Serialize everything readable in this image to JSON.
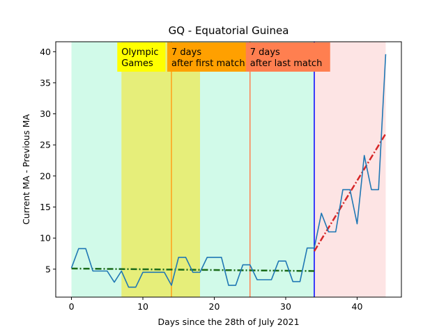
{
  "chart_data": {
    "type": "line",
    "title": "GQ - Equatorial Guinea",
    "xlabel": "Days since the 28th of July 2021",
    "ylabel": "Current MA - Previous MA",
    "xlim": [
      -2.2,
      46.2
    ],
    "ylim": [
      0.5,
      41.6
    ],
    "xticks": [
      0,
      10,
      20,
      30,
      40
    ],
    "yticks": [
      5,
      10,
      15,
      20,
      25,
      30,
      35,
      40
    ],
    "grid": false,
    "series": [
      {
        "color": "#1f77b4",
        "x": [
          0,
          1,
          2,
          3,
          4,
          5,
          6,
          7,
          8,
          9,
          10,
          11,
          12,
          13,
          14,
          15,
          16,
          17,
          18,
          19,
          20,
          21,
          22,
          23,
          24,
          25,
          26,
          27,
          28,
          29,
          30,
          31,
          32,
          33,
          34,
          35,
          36,
          37,
          38,
          39,
          40,
          41,
          42,
          43,
          44
        ],
        "y": [
          5.2,
          8.3,
          8.3,
          4.7,
          4.7,
          4.7,
          2.9,
          4.7,
          2.1,
          2.1,
          4.5,
          4.5,
          4.5,
          4.5,
          2.4,
          6.9,
          6.9,
          4.5,
          4.5,
          6.9,
          6.9,
          6.9,
          2.4,
          2.4,
          5.7,
          5.7,
          3.3,
          3.3,
          3.3,
          6.3,
          6.3,
          3.0,
          3.0,
          8.4,
          8.4,
          14.0,
          11.0,
          11.0,
          17.8,
          17.8,
          12.3,
          23.3,
          17.8,
          17.8,
          39.6
        ]
      }
    ],
    "trend_lines": [
      {
        "color": "#1a6b1a",
        "x": [
          0,
          34
        ],
        "y": [
          5.1,
          4.7
        ]
      },
      {
        "color": "#d62728",
        "x": [
          34,
          44
        ],
        "y": [
          7.9,
          26.8
        ]
      }
    ],
    "regions": [
      {
        "x0": 0,
        "x1": 34,
        "color": "#d1fae9"
      },
      {
        "x0": 7,
        "x1": 18,
        "color": "#e6ee7a"
      },
      {
        "x0": 34,
        "x1": 44,
        "color": "#fde4e4"
      }
    ],
    "vlines": [
      {
        "x": 14,
        "color": "#ff9f1a"
      },
      {
        "x": 25,
        "color": "#ff7f50"
      },
      {
        "x": 34,
        "color": "#0000ff"
      }
    ],
    "annotations": [
      {
        "lines": [
          "Olympic",
          "Games"
        ],
        "x": 7,
        "bg": "#ffff00"
      },
      {
        "lines": [
          "7 days",
          "after first match"
        ],
        "x": 14,
        "bg": "#ffa000"
      },
      {
        "lines": [
          "7 days",
          "after last match"
        ],
        "x": 25,
        "bg": "#ff7f50"
      }
    ]
  }
}
